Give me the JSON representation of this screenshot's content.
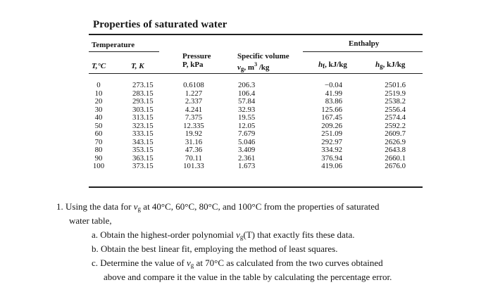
{
  "table": {
    "title": "Properties of saturated water",
    "group_headers": {
      "temperature": "Temperature",
      "enthalpy": "Enthalpy"
    },
    "column_headers": {
      "t_c": "T,°C",
      "t_k": "T, K",
      "pressure_label": "Pressure",
      "pressure_unit": "P, kPa",
      "volume_label": "Specific volume",
      "volume_unit": "v",
      "volume_sub": "g",
      "volume_rest": ", m",
      "volume_sup": "3",
      "volume_end": " /kg",
      "hf": "h",
      "hf_sub": "f",
      "hf_unit": ", kJ/kg",
      "hg": "h",
      "hg_sub": "g",
      "hg_unit": ", kJ/kg"
    },
    "columns": {
      "t_c": [
        "0",
        "10",
        "20",
        "30",
        "40",
        "50",
        "60",
        "70",
        "80",
        "90",
        "100"
      ],
      "t_k": [
        "273.15",
        "283.15",
        "293.15",
        "303.15",
        "313.15",
        "323.15",
        "333.15",
        "343.15",
        "353.15",
        "363.15",
        "373.15"
      ],
      "pressure": [
        "0.6108",
        "1.227",
        "2.337",
        "4.241",
        "7.375",
        "12.335",
        "19.92",
        "31.16",
        "47.36",
        "70.11",
        "101.33"
      ],
      "volume": [
        "206.3",
        "106.4",
        "57.84",
        "32.93",
        "19.55",
        "12.05",
        "7.679",
        "5.046",
        "3.409",
        "2.361",
        "1.673"
      ],
      "hf": [
        "−0.04",
        "41.99",
        "83.86",
        "125.66",
        "167.45",
        "209.26",
        "251.09",
        "292.97",
        "334.92",
        "376.94",
        "419.06"
      ],
      "hg": [
        "2501.6",
        "2519.9",
        "2538.2",
        "2556.4",
        "2574.4",
        "2592.2",
        "2609.7",
        "2626.9",
        "2643.8",
        "2660.1",
        "2676.0"
      ]
    }
  },
  "problem": {
    "number": "1.",
    "intro_a": "Using the data for ",
    "var": "v",
    "var_sub": "g",
    "intro_b": " at 40°C, 60°C, 80°C, and 100°C from the properties of saturated",
    "intro_c": "water table,",
    "a_label": "a.",
    "a_text_a": "Obtain the highest-order polynomial ",
    "a_var": "v",
    "a_sub": "g",
    "a_text_b": "(T) that exactly fits these data.",
    "b_label": "b.",
    "b_text": "Obtain the best linear fit, employing the method of least squares.",
    "c_label": "c.",
    "c_text_a": "Determine the value of ",
    "c_var": "v",
    "c_sub": "g",
    "c_text_b": " at 70°C as calculated from the two curves obtained",
    "c_text_c": "above and compare it the value in the table by calculating the percentage error."
  }
}
